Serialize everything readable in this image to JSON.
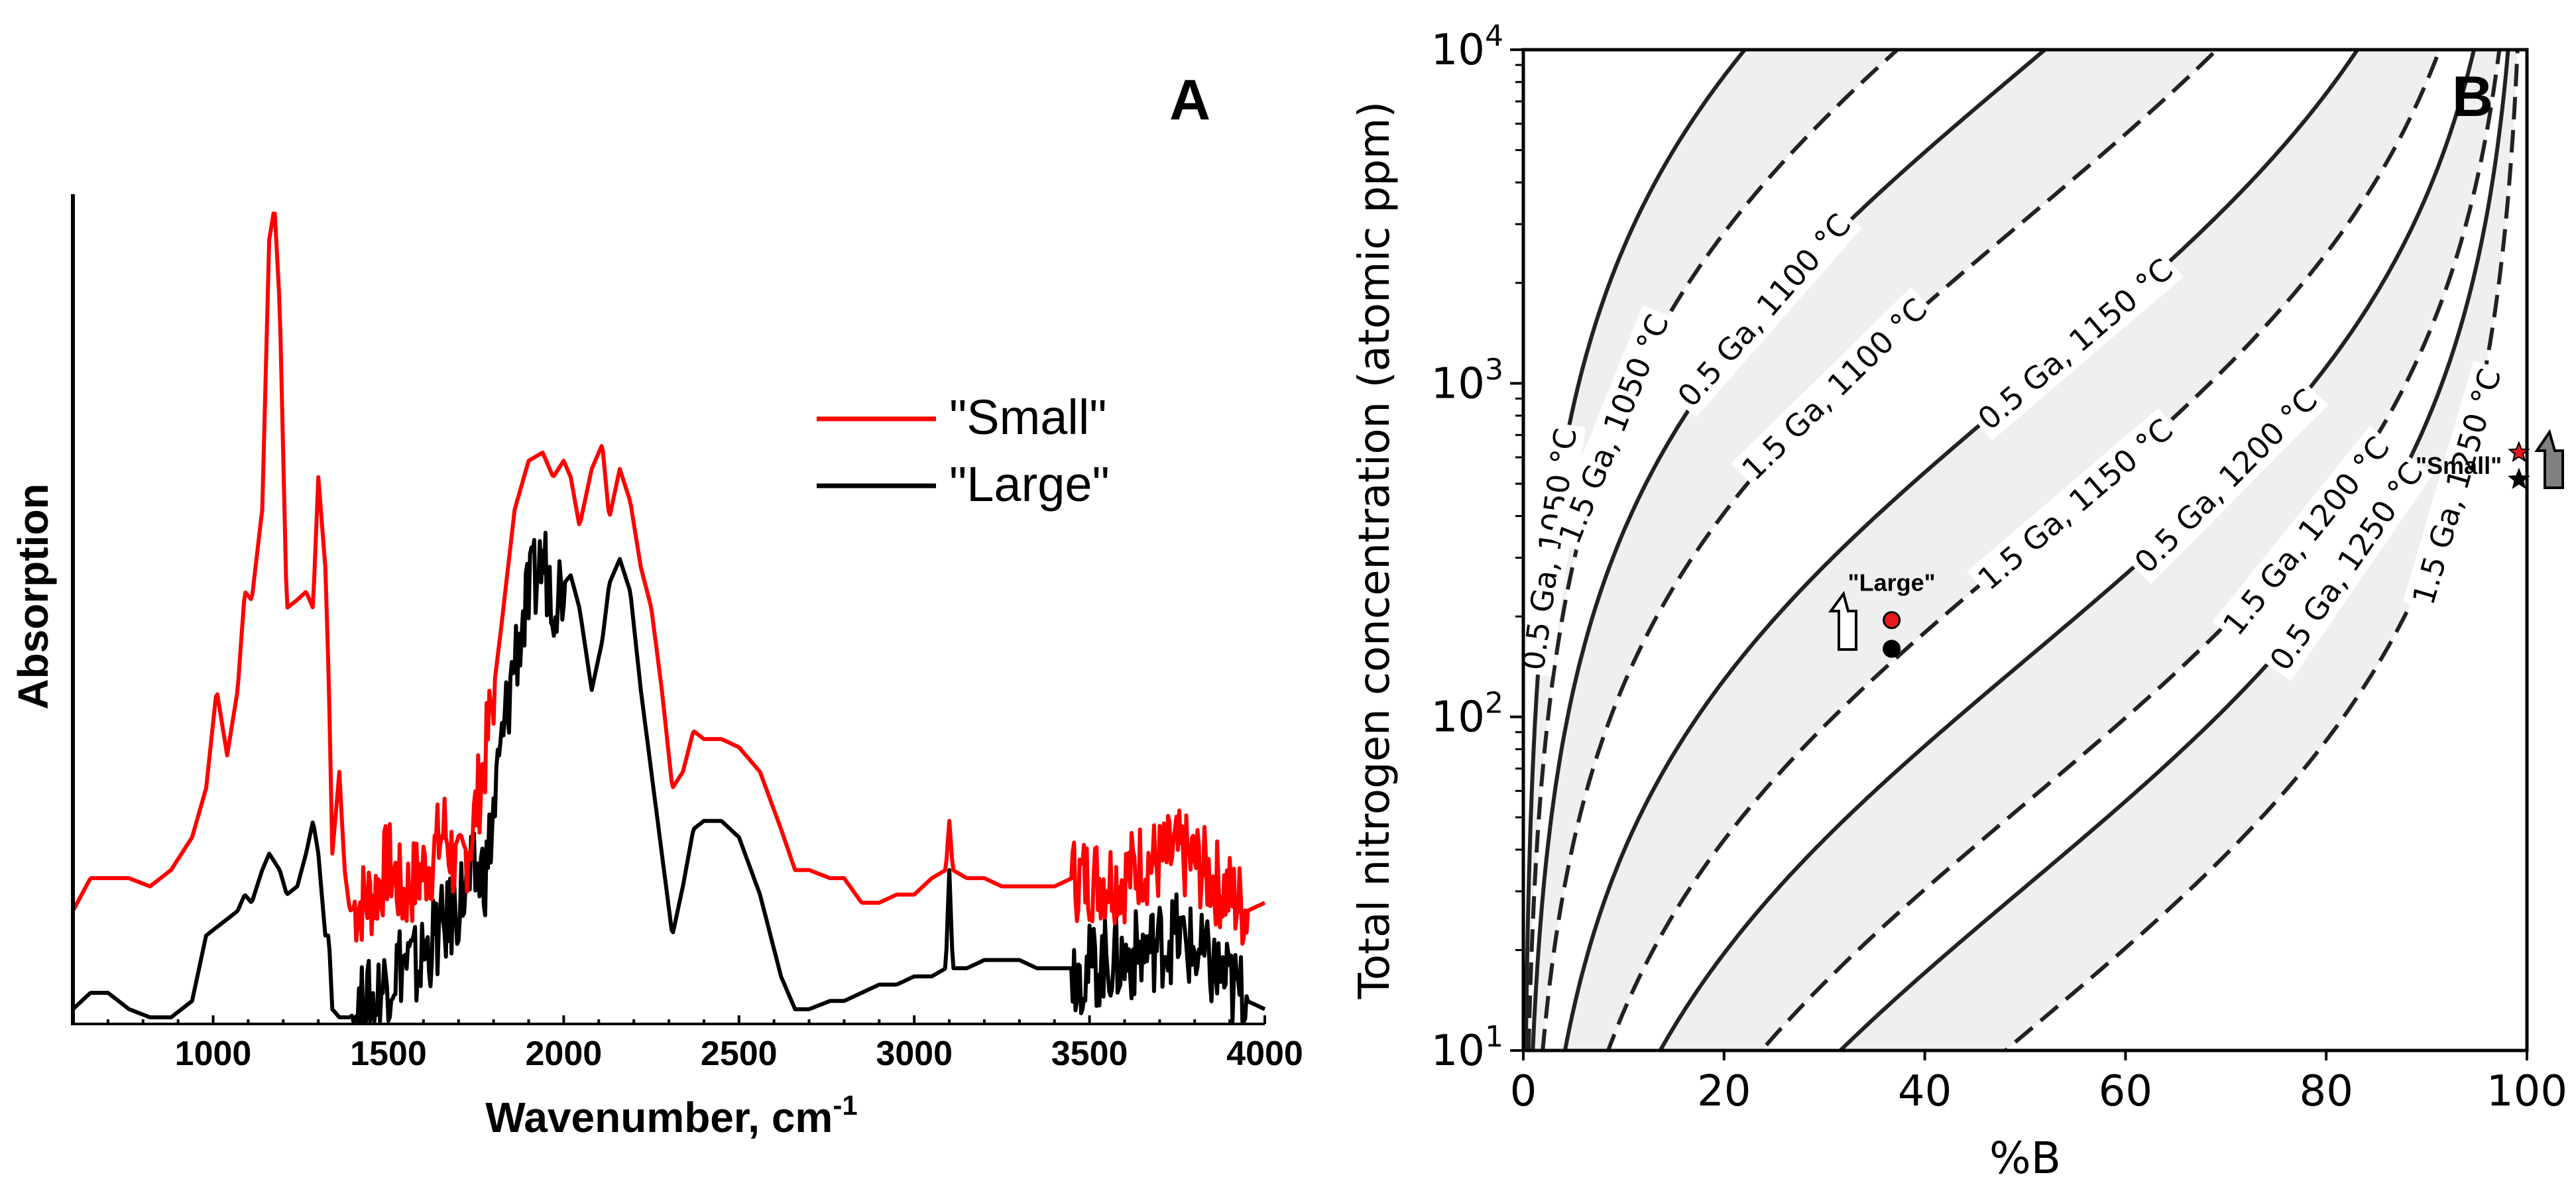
{
  "chart_data": [
    {
      "panel": "A",
      "type": "line",
      "panel_label": "A",
      "xlabel": "Wavenumber, cm",
      "xlabel_sup": "-1",
      "ylabel": "Absorption",
      "xlim": [
        600,
        4000
      ],
      "ylim": [
        0,
        1
      ],
      "xticks": [
        1000,
        1500,
        2000,
        2500,
        3000,
        3500,
        4000
      ],
      "xtick_labels": [
        "1000",
        "1500",
        "2000",
        "2500",
        "3000",
        "3500",
        "4000"
      ],
      "legend_position": "upper-right",
      "series": [
        {
          "name": "\"Small\"",
          "color": "#ff0000",
          "x": [
            600,
            650,
            700,
            760,
            820,
            880,
            940,
            980,
            1010,
            1040,
            1070,
            1090,
            1110,
            1140,
            1160,
            1175,
            1190,
            1210,
            1240,
            1265,
            1285,
            1300,
            1320,
            1330,
            1340,
            1360,
            1375,
            1390,
            1420,
            1460,
            1500,
            1540,
            1580,
            1620,
            1660,
            1700,
            1740,
            1780,
            1820,
            1860,
            1900,
            1940,
            1970,
            2000,
            2020,
            2045,
            2080,
            2110,
            2130,
            2160,
            2190,
            2220,
            2250,
            2280,
            2310,
            2340,
            2370,
            2400,
            2450,
            2500,
            2560,
            2620,
            2660,
            2700,
            2760,
            2800,
            2850,
            2900,
            2950,
            3000,
            3050,
            3090,
            3100,
            3110,
            3150,
            3200,
            3250,
            3300,
            3350,
            3400,
            3450,
            3500,
            3550,
            3600,
            3650,
            3700,
            3750,
            3800,
            3850,
            3900,
            3950,
            4000
          ],
          "values": [
            0.13,
            0.17,
            0.17,
            0.17,
            0.16,
            0.18,
            0.22,
            0.28,
            0.4,
            0.32,
            0.4,
            0.52,
            0.51,
            0.62,
            0.95,
            0.99,
            0.87,
            0.5,
            0.51,
            0.52,
            0.5,
            0.66,
            0.55,
            0.41,
            0.2,
            0.3,
            0.18,
            0.13,
            0.14,
            0.15,
            0.19,
            0.15,
            0.17,
            0.19,
            0.23,
            0.17,
            0.23,
            0.33,
            0.47,
            0.62,
            0.68,
            0.69,
            0.66,
            0.68,
            0.66,
            0.6,
            0.67,
            0.7,
            0.61,
            0.67,
            0.63,
            0.55,
            0.5,
            0.4,
            0.28,
            0.3,
            0.35,
            0.34,
            0.34,
            0.33,
            0.3,
            0.23,
            0.18,
            0.18,
            0.17,
            0.17,
            0.14,
            0.14,
            0.15,
            0.15,
            0.17,
            0.18,
            0.24,
            0.18,
            0.17,
            0.17,
            0.16,
            0.16,
            0.16,
            0.16,
            0.17,
            0.17,
            0.17,
            0.17,
            0.19,
            0.19,
            0.2,
            0.19,
            0.17,
            0.15,
            0.13,
            0.14
          ],
          "noisy_ranges": [
            [
              1400,
              1800
            ],
            [
              3450,
              3950
            ]
          ]
        },
        {
          "name": "\"Large\"",
          "color": "#000000",
          "x": [
            600,
            650,
            700,
            760,
            820,
            880,
            940,
            980,
            1010,
            1040,
            1070,
            1090,
            1110,
            1140,
            1160,
            1175,
            1190,
            1210,
            1240,
            1265,
            1285,
            1300,
            1320,
            1330,
            1340,
            1360,
            1375,
            1390,
            1420,
            1460,
            1500,
            1540,
            1580,
            1620,
            1660,
            1700,
            1740,
            1780,
            1820,
            1860,
            1900,
            1940,
            1970,
            2000,
            2020,
            2045,
            2080,
            2110,
            2130,
            2160,
            2190,
            2220,
            2250,
            2280,
            2310,
            2340,
            2370,
            2400,
            2450,
            2500,
            2560,
            2620,
            2660,
            2700,
            2760,
            2800,
            2850,
            2900,
            2950,
            3000,
            3050,
            3090,
            3100,
            3110,
            3150,
            3200,
            3250,
            3300,
            3350,
            3400,
            3450,
            3500,
            3550,
            3600,
            3650,
            3700,
            3750,
            3800,
            3850,
            3900,
            3950,
            4000
          ],
          "values": [
            0.01,
            0.03,
            0.03,
            0.01,
            0.0,
            0.0,
            0.02,
            0.1,
            0.11,
            0.12,
            0.13,
            0.15,
            0.14,
            0.18,
            0.2,
            0.19,
            0.18,
            0.15,
            0.16,
            0.2,
            0.24,
            0.2,
            0.1,
            0.1,
            0.01,
            0.0,
            0.0,
            0.0,
            0.01,
            0.02,
            0.05,
            0.07,
            0.06,
            0.09,
            0.11,
            0.14,
            0.17,
            0.18,
            0.32,
            0.44,
            0.51,
            0.56,
            0.52,
            0.53,
            0.54,
            0.5,
            0.4,
            0.46,
            0.53,
            0.56,
            0.52,
            0.4,
            0.3,
            0.2,
            0.1,
            0.16,
            0.23,
            0.24,
            0.24,
            0.22,
            0.15,
            0.05,
            0.01,
            0.01,
            0.02,
            0.02,
            0.03,
            0.04,
            0.04,
            0.05,
            0.05,
            0.06,
            0.18,
            0.06,
            0.06,
            0.07,
            0.07,
            0.07,
            0.06,
            0.06,
            0.06,
            0.06,
            0.07,
            0.07,
            0.08,
            0.09,
            0.1,
            0.08,
            0.06,
            0.04,
            0.02,
            0.01
          ],
          "noisy_ranges": [
            [
              1400,
              2000
            ],
            [
              3450,
              3950
            ]
          ]
        }
      ]
    },
    {
      "panel": "B",
      "type": "line",
      "panel_label": "B",
      "xlabel": "%B",
      "ylabel": "Total nitrogen concentration (atomic ppm)",
      "xlim": [
        0,
        100
      ],
      "ylim_log10": [
        1,
        4
      ],
      "xticks": [
        0,
        20,
        40,
        60,
        80,
        100
      ],
      "xtick_labels": [
        "0",
        "20",
        "40",
        "60",
        "80",
        "100"
      ],
      "ytick_base": "10",
      "ytick_exponents": [
        "1",
        "2",
        "3",
        "4"
      ],
      "curve_model": "y = b + a*log10(f/(100-f)) with f=%B, y=log10(ppm)",
      "curves": [
        {
          "label": "0.5 Ga, 1050 °C",
          "style": "solid",
          "a": 1.46,
          "b": 4.8
        },
        {
          "label": "1.5 Ga, 1050 °C",
          "style": "dashed",
          "a": 1.46,
          "b": 4.33
        },
        {
          "label": "0.5 Ga, 1100 °C",
          "style": "solid",
          "a": 1.46,
          "b": 3.95
        },
        {
          "label": "1.5 Ga, 1100 °C",
          "style": "dashed",
          "a": 1.46,
          "b": 3.49
        },
        {
          "label": "0.5 Ga, 1150 °C",
          "style": "solid",
          "a": 1.46,
          "b": 2.99
        },
        {
          "label": "1.5 Ga, 1150 °C",
          "style": "dashed",
          "a": 1.46,
          "b": 2.51
        },
        {
          "label": "0.5 Ga, 1200 °C",
          "style": "solid",
          "a": 1.46,
          "b": 2.17
        },
        {
          "label": "1.5 Ga, 1200 °C",
          "style": "dashed",
          "a": 1.46,
          "b": 1.74
        },
        {
          "label": "0.5 Ga, 1250 °C",
          "style": "solid",
          "a": 1.46,
          "b": 1.49
        },
        {
          "label": "1.5 Ga, 1250 °C",
          "style": "dashed",
          "a": 1.46,
          "b": 1.05
        }
      ],
      "shaded_bands": [
        [
          0,
          1
        ],
        [
          2,
          3
        ],
        [
          4,
          5
        ],
        [
          6,
          7
        ],
        [
          8,
          9
        ]
      ],
      "points": [
        {
          "name": "Large-measured",
          "x": 36.7,
          "ppm": 195,
          "color": "#e8181f",
          "marker": "circle"
        },
        {
          "name": "Large-initial",
          "x": 36.7,
          "ppm": 160,
          "color": "#000000",
          "marker": "circle"
        },
        {
          "name": "Small-measured",
          "x": 99.2,
          "ppm": 620,
          "color": "#e8181f",
          "marker": "star"
        },
        {
          "name": "Small-initial",
          "x": 99.2,
          "ppm": 515,
          "color": "#000000",
          "marker": "star"
        }
      ],
      "annotations": [
        {
          "text": "\"Large\"",
          "x": 36.7,
          "ppm": 250
        },
        {
          "text": "\"Small\"",
          "x": 97.5,
          "ppm": 560
        }
      ],
      "arrows": [
        {
          "name": "large-arrow",
          "fill": "#ffffff"
        },
        {
          "name": "small-arrow",
          "fill": "#808080"
        }
      ]
    }
  ]
}
